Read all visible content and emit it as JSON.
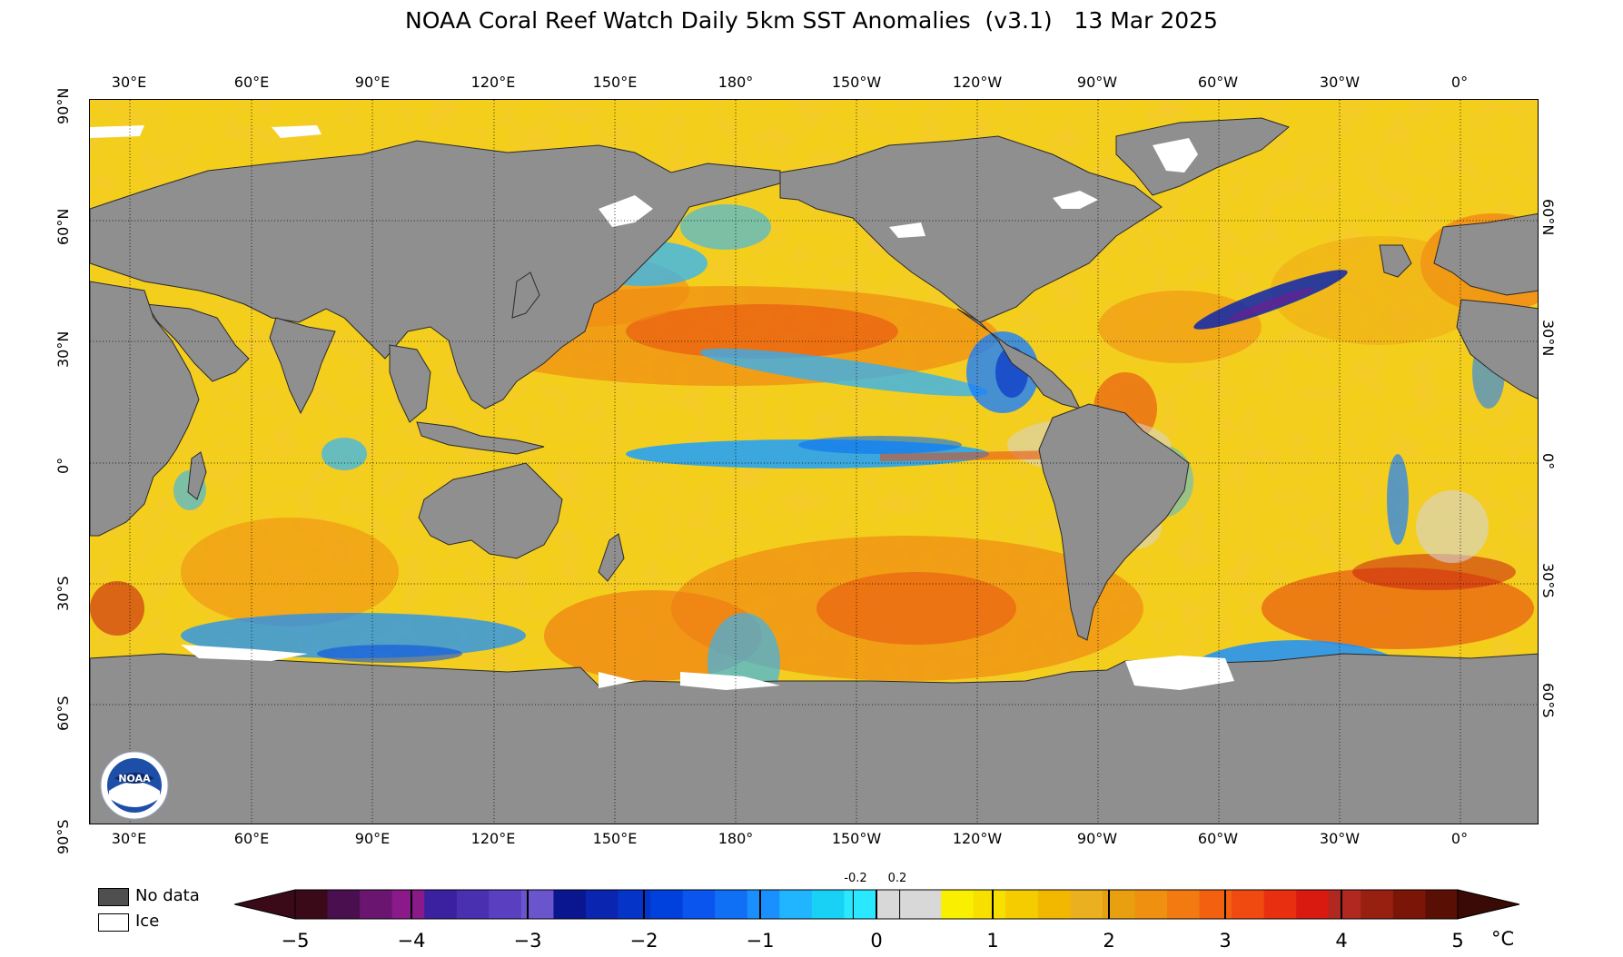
{
  "title": "NOAA Coral Reef Watch Daily 5km SST Anomalies  (v3.1)   13 Mar 2025",
  "lon_labels": [
    "30°E",
    "60°E",
    "90°E",
    "120°E",
    "150°E",
    "180°",
    "150°W",
    "120°W",
    "90°W",
    "60°W",
    "30°W",
    "0°"
  ],
  "lat_labels_left": [
    "90°N",
    "60°N",
    "30°N",
    "0°",
    "30°S",
    "60°S",
    "90°S"
  ],
  "lat_labels_right": [
    "60°N",
    "30°N",
    "0°",
    "30°S",
    "60°S"
  ],
  "legend": {
    "no_data": "No data",
    "ice": "Ice"
  },
  "colorbar": {
    "ticks": [
      "−5",
      "−4",
      "−3",
      "−2",
      "−1",
      "0",
      "1",
      "2",
      "3",
      "4",
      "5"
    ],
    "small_ticks": [
      "-0.2",
      "0.2"
    ],
    "unit": "°C",
    "colors": [
      "#3a0a18",
      "#4a0f4f",
      "#6a1570",
      "#8a1a8a",
      "#3b20a0",
      "#4830b0",
      "#5a40c0",
      "#6b55cc",
      "#0a1590",
      "#0a25b0",
      "#0535c8",
      "#0040dd",
      "#0a55ee",
      "#1070f5",
      "#1a90ff",
      "#22b5ff",
      "#19d0f5",
      "#2ae8ff",
      "#d8d8d8",
      "#d8d8d8",
      "#f8f000",
      "#f7e000",
      "#f5cc00",
      "#f2b800",
      "#eab020",
      "#e8a010",
      "#f09010",
      "#f27a10",
      "#f26010",
      "#f04a10",
      "#e83010",
      "#d81a10",
      "#b02820",
      "#982010",
      "#7a1508",
      "#5a0f05"
    ]
  },
  "colors": {
    "land": "#8f8f8f",
    "no_data": "#4f4f4f",
    "ice": "#ffffff",
    "ocean_base": "#f2d21c"
  }
}
